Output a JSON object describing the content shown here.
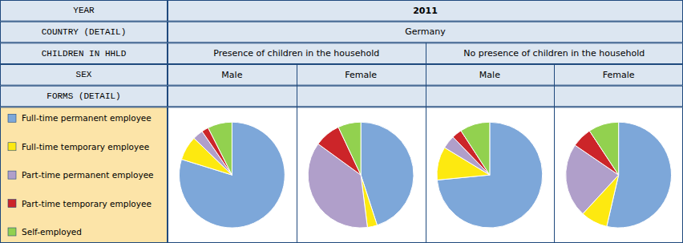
{
  "chart_data": {
    "type": "pie",
    "title": "2011",
    "subtitle": "Germany",
    "annotations": [
      "YEAR",
      "COUNTRY (DETAIL)",
      "CHILDREN IN HHLD",
      "SEX",
      "FORMS (DETAIL)",
      "Presence of children in the household",
      "No presence of children in the household"
    ],
    "categories": [
      "Full-time permanent employee",
      "Full-time temporary employee",
      "Part-time permanent employee",
      "Part-time temporary employee",
      "Self-employed"
    ],
    "colors": [
      "#7da7d9",
      "#fde910",
      "#b09fca",
      "#cc2529",
      "#92d14f"
    ],
    "series": [
      {
        "name": "Male",
        "values": [
          75,
          7,
          3,
          2,
          7
        ]
      },
      {
        "name": "Female",
        "values": [
          45,
          3,
          37,
          8,
          7
        ]
      },
      {
        "name": "Male",
        "values": [
          72,
          10,
          4,
          3,
          9
        ]
      },
      {
        "name": "Female",
        "values": [
          52,
          8,
          22,
          6,
          9
        ]
      }
    ],
    "legend": "left"
  }
}
